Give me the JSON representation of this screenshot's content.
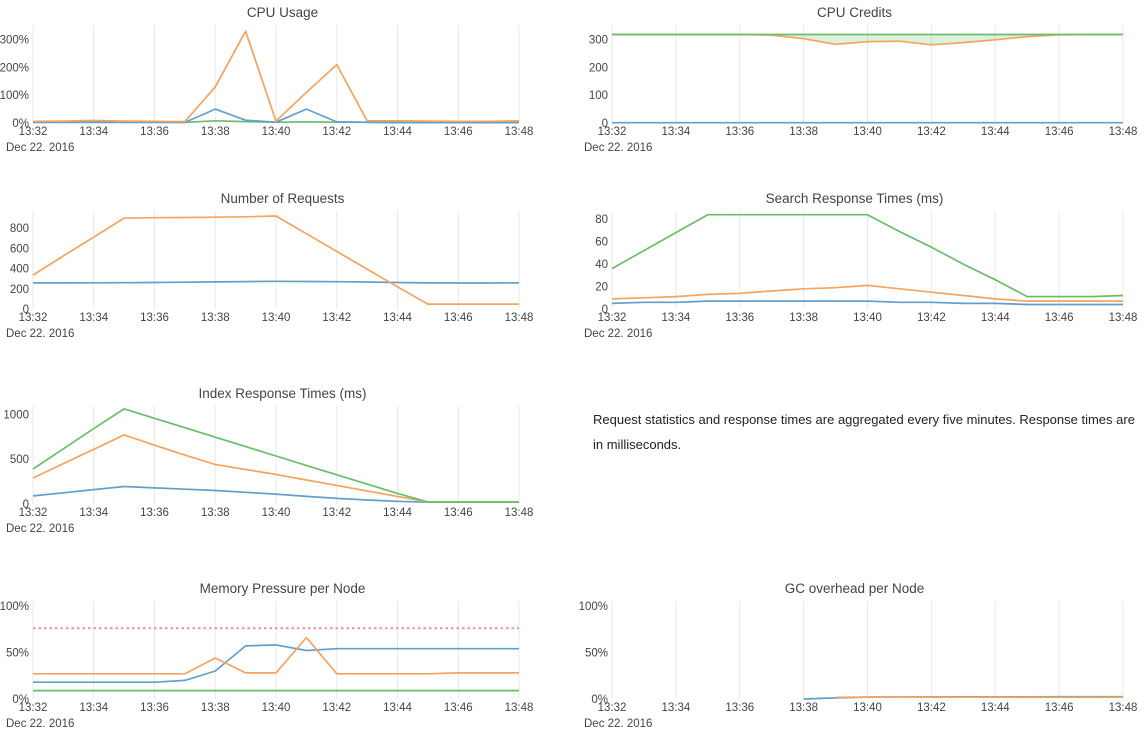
{
  "note": {
    "text": "Request statistics and response times are aggregated every five minutes. Response times are in milliseconds."
  },
  "colors": {
    "blue": "#62a0cb",
    "orange": "#f5a45f",
    "green": "#6bbd6b",
    "pink": "#ea9393",
    "grid": "#e8e8e8",
    "tick_text": "#444444",
    "title_text": "#444444",
    "fill_green": "rgba(107,189,107,0.22)"
  },
  "chart_data": [
    {
      "type": "line",
      "title": "CPU Usage",
      "xlabel": "",
      "ylabel": "",
      "xlim": [
        32,
        48
      ],
      "ylim": [
        0,
        345
      ],
      "grid": "vertical",
      "legend": "none",
      "date_label": "Dec 22. 2016",
      "x_tick_values": [
        32,
        34,
        36,
        38,
        40,
        42,
        44,
        46,
        48
      ],
      "x_tick_labels": [
        "13:32",
        "13:34",
        "13:36",
        "13:38",
        "13:40",
        "13:42",
        "13:44",
        "13:46",
        "13:48"
      ],
      "y_ticks": [
        {
          "v": 0,
          "label": "0%"
        },
        {
          "v": 100,
          "label": "100%"
        },
        {
          "v": 200,
          "label": "200%"
        },
        {
          "v": 300,
          "label": "300%"
        }
      ],
      "series": [
        {
          "color": "green",
          "dash": false,
          "x": [
            32,
            33,
            34,
            35,
            36,
            37,
            38,
            39,
            40,
            41,
            42,
            43,
            44,
            45,
            46,
            47,
            48
          ],
          "y": [
            3,
            3,
            4,
            4,
            3,
            2,
            8,
            5,
            3,
            4,
            3,
            3,
            3,
            3,
            3,
            3,
            3
          ]
        },
        {
          "color": "blue",
          "dash": false,
          "x": [
            32,
            33,
            34,
            35,
            36,
            37,
            38,
            39,
            40,
            41,
            42,
            43,
            44,
            45,
            46,
            47,
            48
          ],
          "y": [
            2,
            2,
            2,
            2,
            2,
            2,
            50,
            10,
            3,
            50,
            4,
            2,
            1,
            1,
            1,
            1,
            1
          ]
        },
        {
          "color": "orange",
          "dash": false,
          "x": [
            32,
            33,
            34,
            35,
            36,
            37,
            38,
            39,
            40,
            41,
            42,
            43,
            44,
            45,
            46,
            47,
            48
          ],
          "y": [
            6,
            7,
            9,
            7,
            6,
            5,
            130,
            330,
            7,
            110,
            210,
            8,
            8,
            7,
            6,
            6,
            8
          ]
        }
      ]
    },
    {
      "type": "line",
      "title": "CPU Credits",
      "xlabel": "",
      "ylabel": "",
      "xlim": [
        32,
        48
      ],
      "ylim": [
        0,
        345
      ],
      "grid": "vertical",
      "legend": "none",
      "date_label": "Dec 22. 2016",
      "x_tick_values": [
        32,
        34,
        36,
        38,
        40,
        42,
        44,
        46,
        48
      ],
      "x_tick_labels": [
        "13:32",
        "13:34",
        "13:36",
        "13:38",
        "13:40",
        "13:42",
        "13:44",
        "13:46",
        "13:48"
      ],
      "y_ticks": [
        {
          "v": 0,
          "label": "0"
        },
        {
          "v": 100,
          "label": "100"
        },
        {
          "v": 200,
          "label": "200"
        },
        {
          "v": 300,
          "label": "300"
        }
      ],
      "fill_between": {
        "upper": 2,
        "lower": 1,
        "color_key": "fill_green"
      },
      "series": [
        {
          "color": "blue",
          "dash": false,
          "x": [
            32,
            48
          ],
          "y": [
            1,
            1
          ]
        },
        {
          "color": "orange",
          "dash": false,
          "x": [
            32,
            33,
            34,
            35,
            36,
            37,
            38,
            39,
            40,
            41,
            42,
            43,
            44,
            45,
            46,
            47,
            48
          ],
          "y": [
            318,
            318,
            318,
            318,
            318,
            316,
            303,
            283,
            292,
            294,
            281,
            289,
            299,
            310,
            317,
            318,
            318
          ]
        },
        {
          "color": "green",
          "dash": false,
          "x": [
            32,
            48
          ],
          "y": [
            318,
            318
          ]
        }
      ]
    },
    {
      "type": "line",
      "title": "Number of Requests",
      "xlabel": "",
      "ylabel": "",
      "xlim": [
        32,
        48
      ],
      "ylim": [
        0,
        950
      ],
      "grid": "vertical",
      "legend": "none",
      "date_label": "Dec 22. 2016",
      "x_tick_values": [
        32,
        34,
        36,
        38,
        40,
        42,
        44,
        46,
        48
      ],
      "x_tick_labels": [
        "13:32",
        "13:34",
        "13:36",
        "13:38",
        "13:40",
        "13:42",
        "13:44",
        "13:46",
        "13:48"
      ],
      "y_ticks": [
        {
          "v": 0,
          "label": "0"
        },
        {
          "v": 200,
          "label": "200"
        },
        {
          "v": 400,
          "label": "400"
        },
        {
          "v": 600,
          "label": "600"
        },
        {
          "v": 800,
          "label": "800"
        }
      ],
      "series": [
        {
          "color": "blue",
          "dash": false,
          "x": [
            32,
            33,
            34,
            35,
            36,
            37,
            38,
            39,
            40,
            41,
            42,
            43,
            44,
            45,
            46,
            47,
            48
          ],
          "y": [
            258,
            258,
            259,
            260,
            262,
            265,
            268,
            271,
            274,
            272,
            270,
            267,
            262,
            258,
            257,
            257,
            258
          ]
        },
        {
          "color": "orange",
          "dash": false,
          "x": [
            32,
            33,
            34,
            35,
            36,
            37,
            38,
            39,
            40,
            41,
            42,
            43,
            44,
            45,
            46,
            47,
            48
          ],
          "y": [
            335,
            525,
            712,
            900,
            903,
            905,
            908,
            912,
            920,
            745,
            570,
            395,
            220,
            48,
            48,
            48,
            48
          ]
        }
      ]
    },
    {
      "type": "line",
      "title": "Search Response Times (ms)",
      "xlabel": "",
      "ylabel": "",
      "xlim": [
        32,
        48
      ],
      "ylim": [
        0,
        85.5
      ],
      "grid": "vertical",
      "legend": "none",
      "date_label": "Dec 22. 2016",
      "x_tick_values": [
        32,
        34,
        36,
        38,
        40,
        42,
        44,
        46,
        48
      ],
      "x_tick_labels": [
        "13:32",
        "13:34",
        "13:36",
        "13:38",
        "13:40",
        "13:42",
        "13:44",
        "13:46",
        "13:48"
      ],
      "y_ticks": [
        {
          "v": 0,
          "label": "0"
        },
        {
          "v": 20,
          "label": "20"
        },
        {
          "v": 40,
          "label": "40"
        },
        {
          "v": 60,
          "label": "60"
        },
        {
          "v": 80,
          "label": "80"
        }
      ],
      "series": [
        {
          "color": "blue",
          "dash": false,
          "x": [
            32,
            33,
            34,
            35,
            36,
            37,
            38,
            39,
            40,
            41,
            42,
            43,
            44,
            45,
            46,
            47,
            48
          ],
          "y": [
            5,
            6,
            6,
            7,
            7,
            7,
            7,
            7,
            7,
            6,
            6,
            5,
            5,
            4,
            4,
            4,
            4
          ]
        },
        {
          "color": "orange",
          "dash": false,
          "x": [
            32,
            33,
            34,
            35,
            36,
            37,
            38,
            39,
            40,
            41,
            42,
            43,
            44,
            45,
            46,
            47,
            48
          ],
          "y": [
            9,
            10,
            11,
            13,
            14,
            16,
            18,
            19,
            21,
            18,
            15,
            12,
            9,
            7,
            7,
            7,
            7
          ]
        },
        {
          "color": "green",
          "dash": false,
          "x": [
            32,
            33,
            34,
            35,
            36,
            37,
            38,
            39,
            40,
            41,
            42,
            43,
            44,
            45,
            46,
            47,
            48
          ],
          "y": [
            36,
            52,
            68,
            84,
            84,
            84,
            84,
            84,
            84,
            69,
            55,
            40,
            26,
            11,
            11,
            11,
            12
          ]
        }
      ]
    },
    {
      "type": "line",
      "title": "Index Response Times (ms)",
      "xlabel": "",
      "ylabel": "",
      "xlim": [
        32,
        48
      ],
      "ylim": [
        0,
        1070
      ],
      "grid": "vertical",
      "legend": "none",
      "date_label": "Dec 22. 2016",
      "x_tick_values": [
        32,
        34,
        36,
        38,
        40,
        42,
        44,
        46,
        48
      ],
      "x_tick_labels": [
        "13:32",
        "13:34",
        "13:36",
        "13:38",
        "13:40",
        "13:42",
        "13:44",
        "13:46",
        "13:48"
      ],
      "y_ticks": [
        {
          "v": 0,
          "label": "0"
        },
        {
          "v": 500,
          "label": "500"
        },
        {
          "v": 1000,
          "label": "1000"
        }
      ],
      "series": [
        {
          "color": "blue",
          "dash": false,
          "x": [
            32,
            33,
            34,
            35,
            36,
            37,
            38,
            39,
            40,
            41,
            42,
            43,
            44,
            45,
            46,
            47,
            48
          ],
          "y": [
            90,
            125,
            160,
            195,
            180,
            165,
            150,
            130,
            110,
            85,
            62,
            45,
            30,
            20,
            20,
            20,
            20
          ]
        },
        {
          "color": "orange",
          "dash": false,
          "x": [
            32,
            33,
            34,
            35,
            36,
            37,
            38,
            39,
            40,
            41,
            42,
            43,
            44,
            45,
            46,
            47,
            48
          ],
          "y": [
            290,
            450,
            610,
            770,
            655,
            545,
            440,
            385,
            330,
            268,
            207,
            145,
            85,
            22,
            22,
            22,
            22
          ]
        },
        {
          "color": "green",
          "dash": false,
          "x": [
            32,
            33,
            34,
            35,
            36,
            37,
            38,
            39,
            40,
            41,
            42,
            43,
            44,
            45,
            46,
            47,
            48
          ],
          "y": [
            390,
            615,
            840,
            1060,
            955,
            850,
            745,
            640,
            535,
            430,
            325,
            222,
            118,
            22,
            22,
            22,
            22
          ]
        }
      ]
    },
    {
      "type": "line",
      "title": "Memory Pressure per Node",
      "xlabel": "",
      "ylabel": "",
      "xlim": [
        32,
        48
      ],
      "ylim": [
        0,
        103
      ],
      "grid": "vertical",
      "legend": "none",
      "date_label": "Dec 22. 2016",
      "x_tick_values": [
        32,
        34,
        36,
        38,
        40,
        42,
        44,
        46,
        48
      ],
      "x_tick_labels": [
        "13:32",
        "13:34",
        "13:36",
        "13:38",
        "13:40",
        "13:42",
        "13:44",
        "13:46",
        "13:48"
      ],
      "y_ticks": [
        {
          "v": 0,
          "label": "0%"
        },
        {
          "v": 50,
          "label": "50%"
        },
        {
          "v": 100,
          "label": "100%"
        }
      ],
      "series": [
        {
          "color": "pink",
          "dash": true,
          "x": [
            32,
            48
          ],
          "y": [
            76,
            76
          ]
        },
        {
          "color": "green",
          "dash": false,
          "x": [
            32,
            48
          ],
          "y": [
            9,
            9
          ]
        },
        {
          "color": "blue",
          "dash": false,
          "x": [
            32,
            33,
            34,
            35,
            36,
            37,
            38,
            39,
            40,
            41,
            42,
            43,
            44,
            45,
            46,
            47,
            48
          ],
          "y": [
            18,
            18,
            18,
            18,
            18,
            20,
            30,
            57,
            58,
            52,
            54,
            54,
            54,
            54,
            54,
            54,
            54
          ]
        },
        {
          "color": "orange",
          "dash": false,
          "x": [
            32,
            33,
            34,
            35,
            36,
            37,
            38,
            39,
            40,
            41,
            42,
            43,
            44,
            45,
            46,
            47,
            48
          ],
          "y": [
            27,
            27,
            27,
            27,
            27,
            27,
            44,
            28,
            28,
            66,
            27,
            27,
            27,
            27,
            28,
            28,
            28
          ]
        }
      ]
    },
    {
      "type": "line",
      "title": "GC overhead per Node",
      "xlabel": "",
      "ylabel": "",
      "xlim": [
        32,
        48
      ],
      "ylim": [
        0,
        103
      ],
      "grid": "vertical",
      "legend": "none",
      "date_label": "Dec 22. 2016",
      "x_tick_values": [
        32,
        34,
        36,
        38,
        40,
        42,
        44,
        46,
        48
      ],
      "x_tick_labels": [
        "13:32",
        "13:34",
        "13:36",
        "13:38",
        "13:40",
        "13:42",
        "13:44",
        "13:46",
        "13:48"
      ],
      "y_ticks": [
        {
          "v": 0,
          "label": "0%"
        },
        {
          "v": 50,
          "label": "50%"
        },
        {
          "v": 100,
          "label": "100%"
        }
      ],
      "series": [
        {
          "color": "blue",
          "dash": false,
          "x": [
            38,
            39,
            40,
            41,
            42,
            43,
            44,
            45,
            46,
            47,
            48
          ],
          "y": [
            0,
            1.2,
            2,
            2.2,
            2.3,
            2.3,
            2.4,
            2.4,
            2.5,
            2.5,
            2.5
          ]
        },
        {
          "color": "orange",
          "dash": false,
          "x": [
            39,
            40,
            41,
            42,
            43,
            44,
            45,
            46,
            47,
            48
          ],
          "y": [
            1.8,
            2,
            2.2,
            2,
            1.9,
            1.9,
            1.8,
            1.8,
            1.8,
            1.9
          ]
        }
      ]
    }
  ]
}
